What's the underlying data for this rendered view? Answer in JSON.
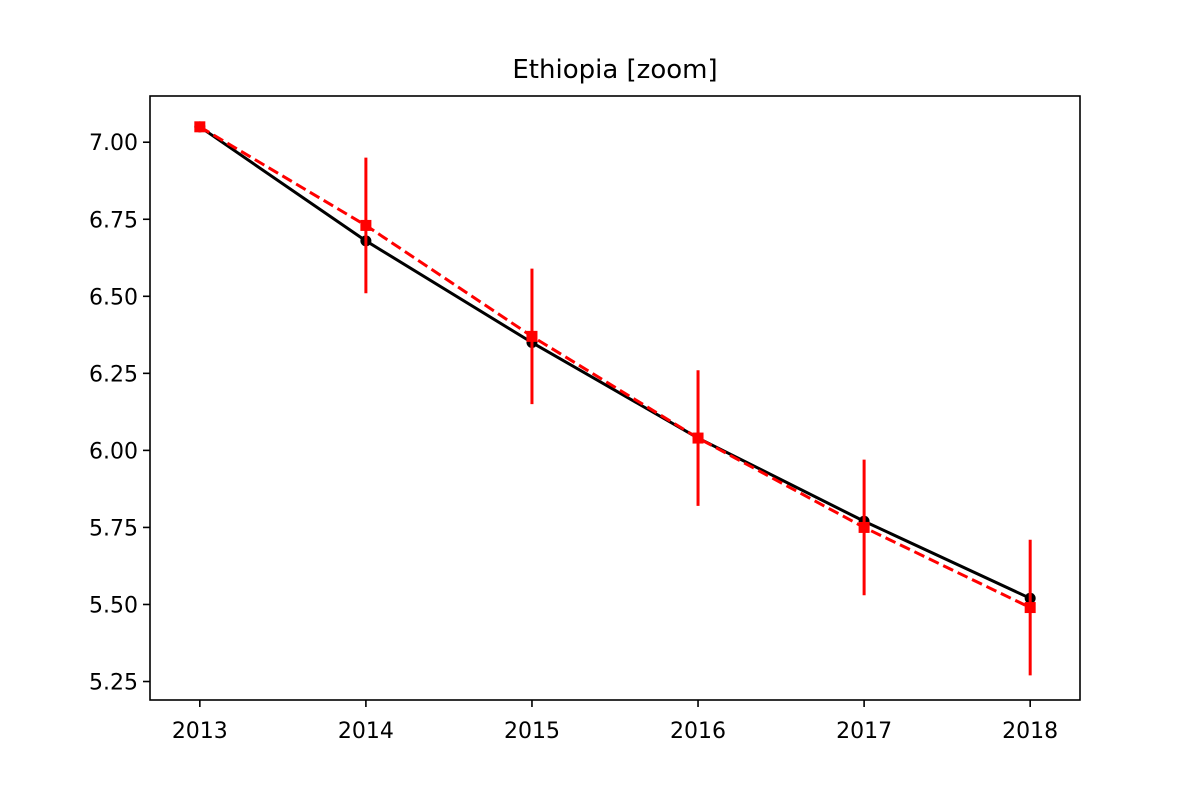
{
  "chart_data": {
    "type": "line",
    "title": "Ethiopia [zoom]",
    "xlabel": "",
    "ylabel": "",
    "x": [
      2013,
      2014,
      2015,
      2016,
      2017,
      2018
    ],
    "xlim": [
      2012.7,
      2018.3
    ],
    "ylim": [
      5.19,
      7.15
    ],
    "xticks": [
      2013,
      2014,
      2015,
      2016,
      2017,
      2018
    ],
    "yticks": [
      5.25,
      5.5,
      5.75,
      6.0,
      6.25,
      6.5,
      6.75,
      7.0
    ],
    "grid": false,
    "series": [
      {
        "style": "solid",
        "marker": "circle",
        "color": "#000000",
        "values": [
          7.05,
          6.68,
          6.35,
          6.04,
          5.77,
          5.52
        ]
      },
      {
        "style": "dashed",
        "marker": "square",
        "color": "#ff0000",
        "values": [
          7.05,
          6.73,
          6.37,
          6.04,
          5.75,
          5.49
        ],
        "error": [
          null,
          0.22,
          0.22,
          0.22,
          0.22,
          0.22
        ]
      }
    ]
  }
}
